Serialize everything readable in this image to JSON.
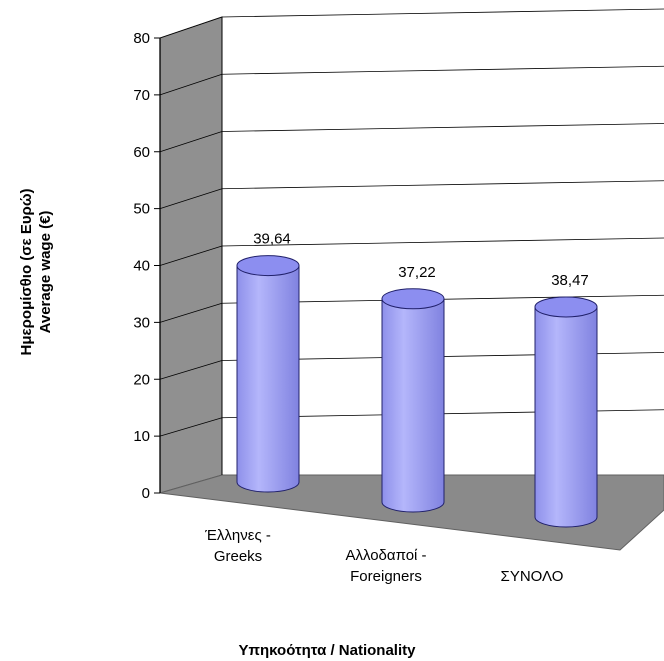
{
  "chart_data": {
    "type": "bar",
    "style": "3d-cylinder",
    "categories": [
      [
        "Έλληνες -",
        "Greeks"
      ],
      [
        "Αλλοδαποί -",
        "Foreigners"
      ],
      [
        "ΣΥΝΟΛΟ"
      ]
    ],
    "values": [
      39.64,
      37.22,
      38.47
    ],
    "value_labels": [
      "39,64",
      "37,22",
      "38,47"
    ],
    "ylabel": [
      "Ημερομίσθιο (σε Ευρώ)",
      "Average wage (€)"
    ],
    "xlabel": "Υπηκοότητα / Nationality",
    "ylim": [
      0,
      80
    ],
    "yticks": [
      0,
      10,
      20,
      30,
      40,
      50,
      60,
      70,
      80
    ],
    "grid": true,
    "legend": "none",
    "colors": {
      "bar_side": "#a8aaf5",
      "bar_top": "#8c8ef0",
      "bar_edge": "#20206a",
      "wall": "#909090",
      "floor": "#8a8a8a",
      "grid": "#000000"
    }
  }
}
